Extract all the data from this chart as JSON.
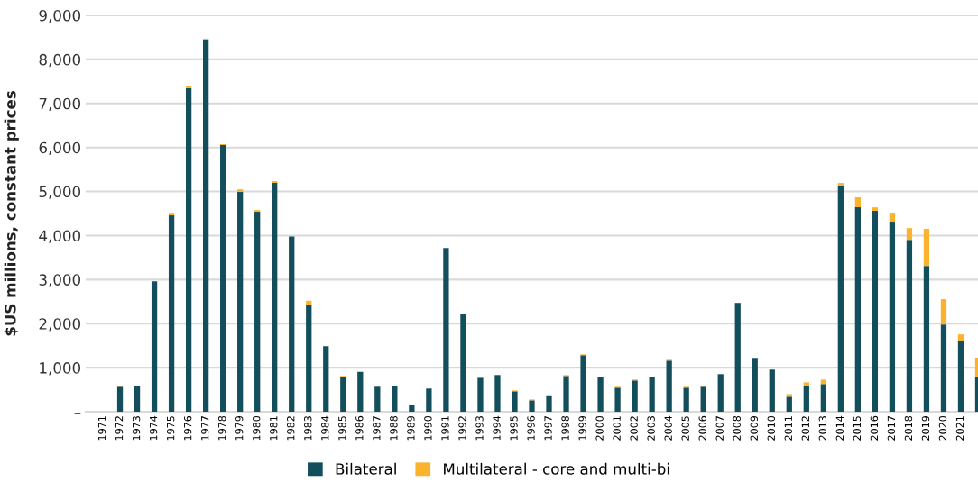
{
  "chart_data": {
    "type": "bar",
    "stacked": true,
    "ylabel": "$US millions, constant prices",
    "categories": [
      "1971",
      "1972",
      "1973",
      "1974",
      "1975",
      "1976",
      "1977",
      "1978",
      "1979",
      "1980",
      "1981",
      "1982",
      "1983",
      "1984",
      "1985",
      "1986",
      "1987",
      "1988",
      "1989",
      "1990",
      "1991",
      "1992",
      "1993",
      "1994",
      "1995",
      "1996",
      "1997",
      "1998",
      "1999",
      "2000",
      "2001",
      "2002",
      "2003",
      "2004",
      "2005",
      "2006",
      "2007",
      "2008",
      "2009",
      "2010",
      "2011",
      "2012",
      "2013",
      "2014",
      "2015",
      "2016",
      "2017",
      "2018",
      "2019",
      "2020",
      "2021",
      null
    ],
    "series": [
      {
        "name": "Bilateral",
        "color": "#124e5c",
        "values": [
          0,
          567,
          587,
          2960,
          4457,
          7345,
          8451,
          6055,
          4990,
          4539,
          5195,
          3980,
          2430,
          1488,
          792,
          901,
          567,
          587,
          157,
          526,
          3720,
          2225,
          771,
          833,
          464,
          259,
          362,
          812,
          1283,
          792,
          546,
          710,
          792,
          1160,
          546,
          567,
          853,
          2471,
          1222,
          956,
          341,
          587,
          628,
          5133,
          4642,
          4560,
          4314,
          3904,
          3311,
          1980,
          1611,
          799
        ]
      },
      {
        "name": "Multilateral - core and multi-bi",
        "color": "#fbb32e",
        "values": [
          0,
          20,
          0,
          0,
          60,
          60,
          20,
          20,
          60,
          40,
          40,
          0,
          90,
          0,
          20,
          15,
          0,
          0,
          0,
          0,
          0,
          0,
          25,
          0,
          20,
          20,
          20,
          20,
          20,
          0,
          20,
          20,
          0,
          20,
          20,
          20,
          0,
          0,
          0,
          0,
          60,
          80,
          100,
          60,
          225,
          80,
          205,
          265,
          840,
          575,
          145,
          430
        ]
      }
    ],
    "ylim": [
      0,
      9000
    ],
    "yticks": [
      {
        "value": 0,
        "label": "–"
      },
      {
        "value": 1000,
        "label": "1,000"
      },
      {
        "value": 2000,
        "label": "2,000"
      },
      {
        "value": 3000,
        "label": "3,000"
      },
      {
        "value": 4000,
        "label": "4,000"
      },
      {
        "value": 5000,
        "label": "5,000"
      },
      {
        "value": 6000,
        "label": "6,000"
      },
      {
        "value": 7000,
        "label": "7,000"
      },
      {
        "value": 8000,
        "label": "8,000"
      },
      {
        "value": 9000,
        "label": "9,000"
      }
    ],
    "grid": "y",
    "legend": "bottom"
  }
}
